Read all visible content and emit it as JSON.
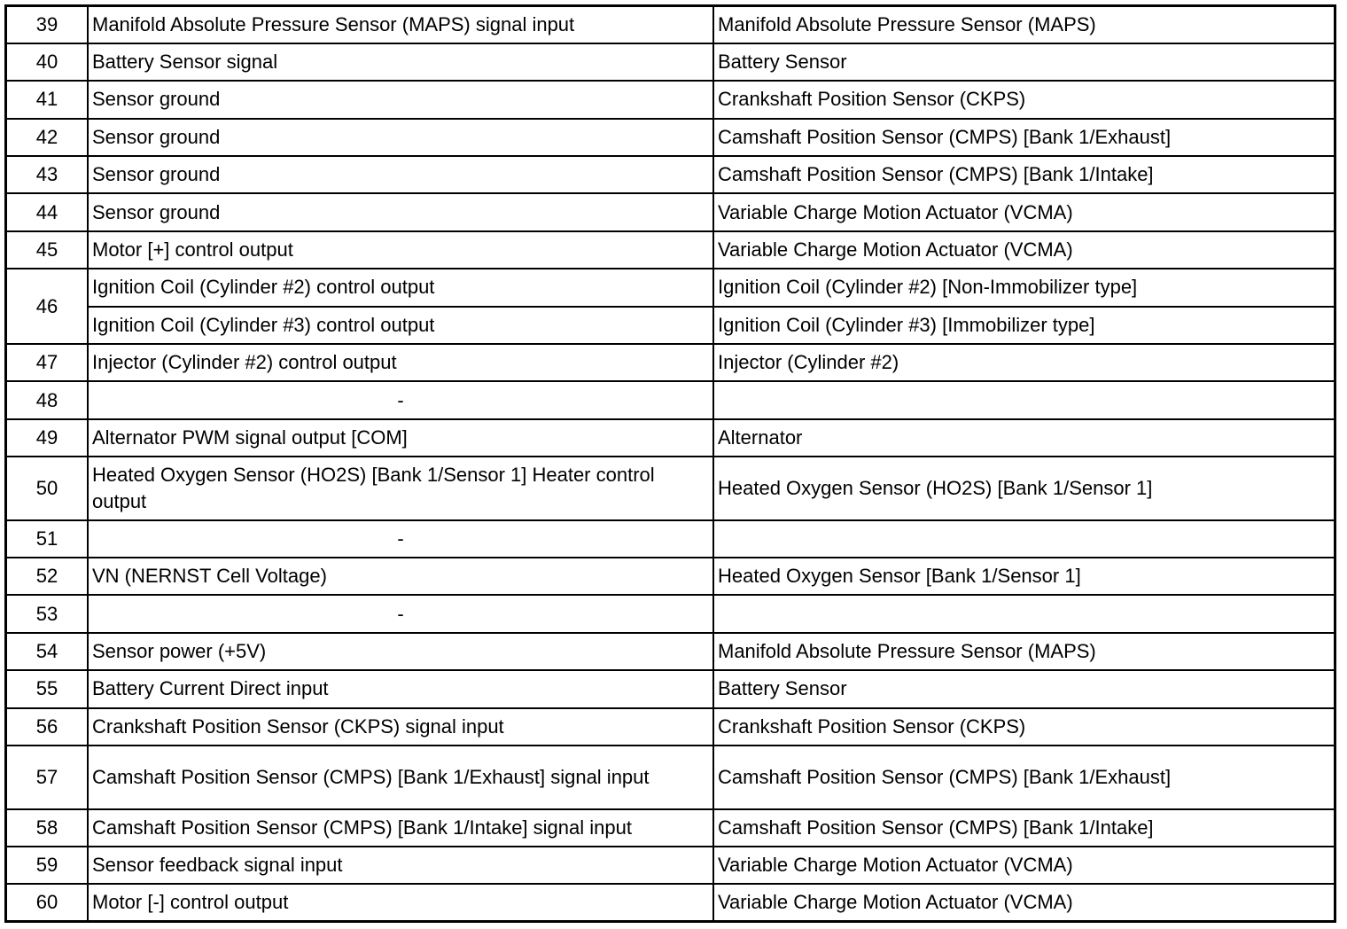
{
  "rows": [
    {
      "pin": "39",
      "entries": [
        {
          "description": "Manifold Absolute Pressure Sensor (MAPS) signal input",
          "connected_to": "Manifold Absolute Pressure Sensor (MAPS)"
        }
      ]
    },
    {
      "pin": "40",
      "entries": [
        {
          "description": "Battery Sensor signal",
          "connected_to": "Battery Sensor"
        }
      ]
    },
    {
      "pin": "41",
      "entries": [
        {
          "description": "Sensor ground",
          "connected_to": "Crankshaft Position Sensor (CKPS)"
        }
      ]
    },
    {
      "pin": "42",
      "entries": [
        {
          "description": "Sensor ground",
          "connected_to": "Camshaft Position Sensor (CMPS) [Bank 1/Exhaust]"
        }
      ]
    },
    {
      "pin": "43",
      "entries": [
        {
          "description": "Sensor ground",
          "connected_to": "Camshaft Position Sensor (CMPS) [Bank 1/Intake]"
        }
      ]
    },
    {
      "pin": "44",
      "entries": [
        {
          "description": "Sensor ground",
          "connected_to": "Variable Charge Motion Actuator (VCMA)"
        }
      ]
    },
    {
      "pin": "45",
      "entries": [
        {
          "description": "Motor [+] control output",
          "connected_to": "Variable Charge Motion Actuator (VCMA)"
        }
      ]
    },
    {
      "pin": "46",
      "entries": [
        {
          "description": "Ignition Coil (Cylinder #2) control output",
          "connected_to": "Ignition Coil (Cylinder #2) [Non-Immobilizer type]"
        },
        {
          "description": "Ignition Coil (Cylinder #3) control output",
          "connected_to": "Ignition Coil (Cylinder #3) [Immobilizer type]"
        }
      ]
    },
    {
      "pin": "47",
      "entries": [
        {
          "description": "Injector (Cylinder #2) control output",
          "connected_to": "Injector (Cylinder #2)"
        }
      ]
    },
    {
      "pin": "48",
      "entries": [
        {
          "description": "-",
          "connected_to": ""
        }
      ]
    },
    {
      "pin": "49",
      "entries": [
        {
          "description": "Alternator PWM signal output [COM]",
          "connected_to": "Alternator"
        }
      ]
    },
    {
      "pin": "50",
      "tall": true,
      "entries": [
        {
          "description": "Heated Oxygen Sensor (HO2S) [Bank 1/Sensor 1] Heater control output",
          "connected_to": "Heated Oxygen Sensor (HO2S) [Bank 1/Sensor 1]"
        }
      ]
    },
    {
      "pin": "51",
      "entries": [
        {
          "description": "-",
          "connected_to": ""
        }
      ]
    },
    {
      "pin": "52",
      "entries": [
        {
          "description": "VN (NERNST Cell Voltage)",
          "connected_to": "Heated Oxygen Sensor [Bank 1/Sensor 1]"
        }
      ]
    },
    {
      "pin": "53",
      "entries": [
        {
          "description": "-",
          "connected_to": ""
        }
      ]
    },
    {
      "pin": "54",
      "entries": [
        {
          "description": "Sensor power (+5V)",
          "connected_to": "Manifold Absolute Pressure Sensor (MAPS)"
        }
      ]
    },
    {
      "pin": "55",
      "entries": [
        {
          "description": "Battery Current Direct input",
          "connected_to": "Battery Sensor"
        }
      ]
    },
    {
      "pin": "56",
      "entries": [
        {
          "description": "Crankshaft Position Sensor (CKPS) signal input",
          "connected_to": "Crankshaft Position Sensor (CKPS)"
        }
      ]
    },
    {
      "pin": "57",
      "tall": true,
      "entries": [
        {
          "description": "Camshaft Position Sensor (CMPS) [Bank 1/Exhaust] signal input",
          "connected_to": "Camshaft Position Sensor (CMPS) [Bank 1/Exhaust]"
        }
      ]
    },
    {
      "pin": "58",
      "entries": [
        {
          "description": "Camshaft Position Sensor (CMPS) [Bank 1/Intake] signal input",
          "connected_to": "Camshaft Position Sensor (CMPS) [Bank 1/Intake]"
        }
      ]
    },
    {
      "pin": "59",
      "entries": [
        {
          "description": "Sensor feedback signal input",
          "connected_to": "Variable Charge Motion Actuator (VCMA)"
        }
      ]
    },
    {
      "pin": "60",
      "entries": [
        {
          "description": "Motor [-] control output",
          "connected_to": "Variable Charge Motion Actuator (VCMA)"
        }
      ]
    }
  ]
}
